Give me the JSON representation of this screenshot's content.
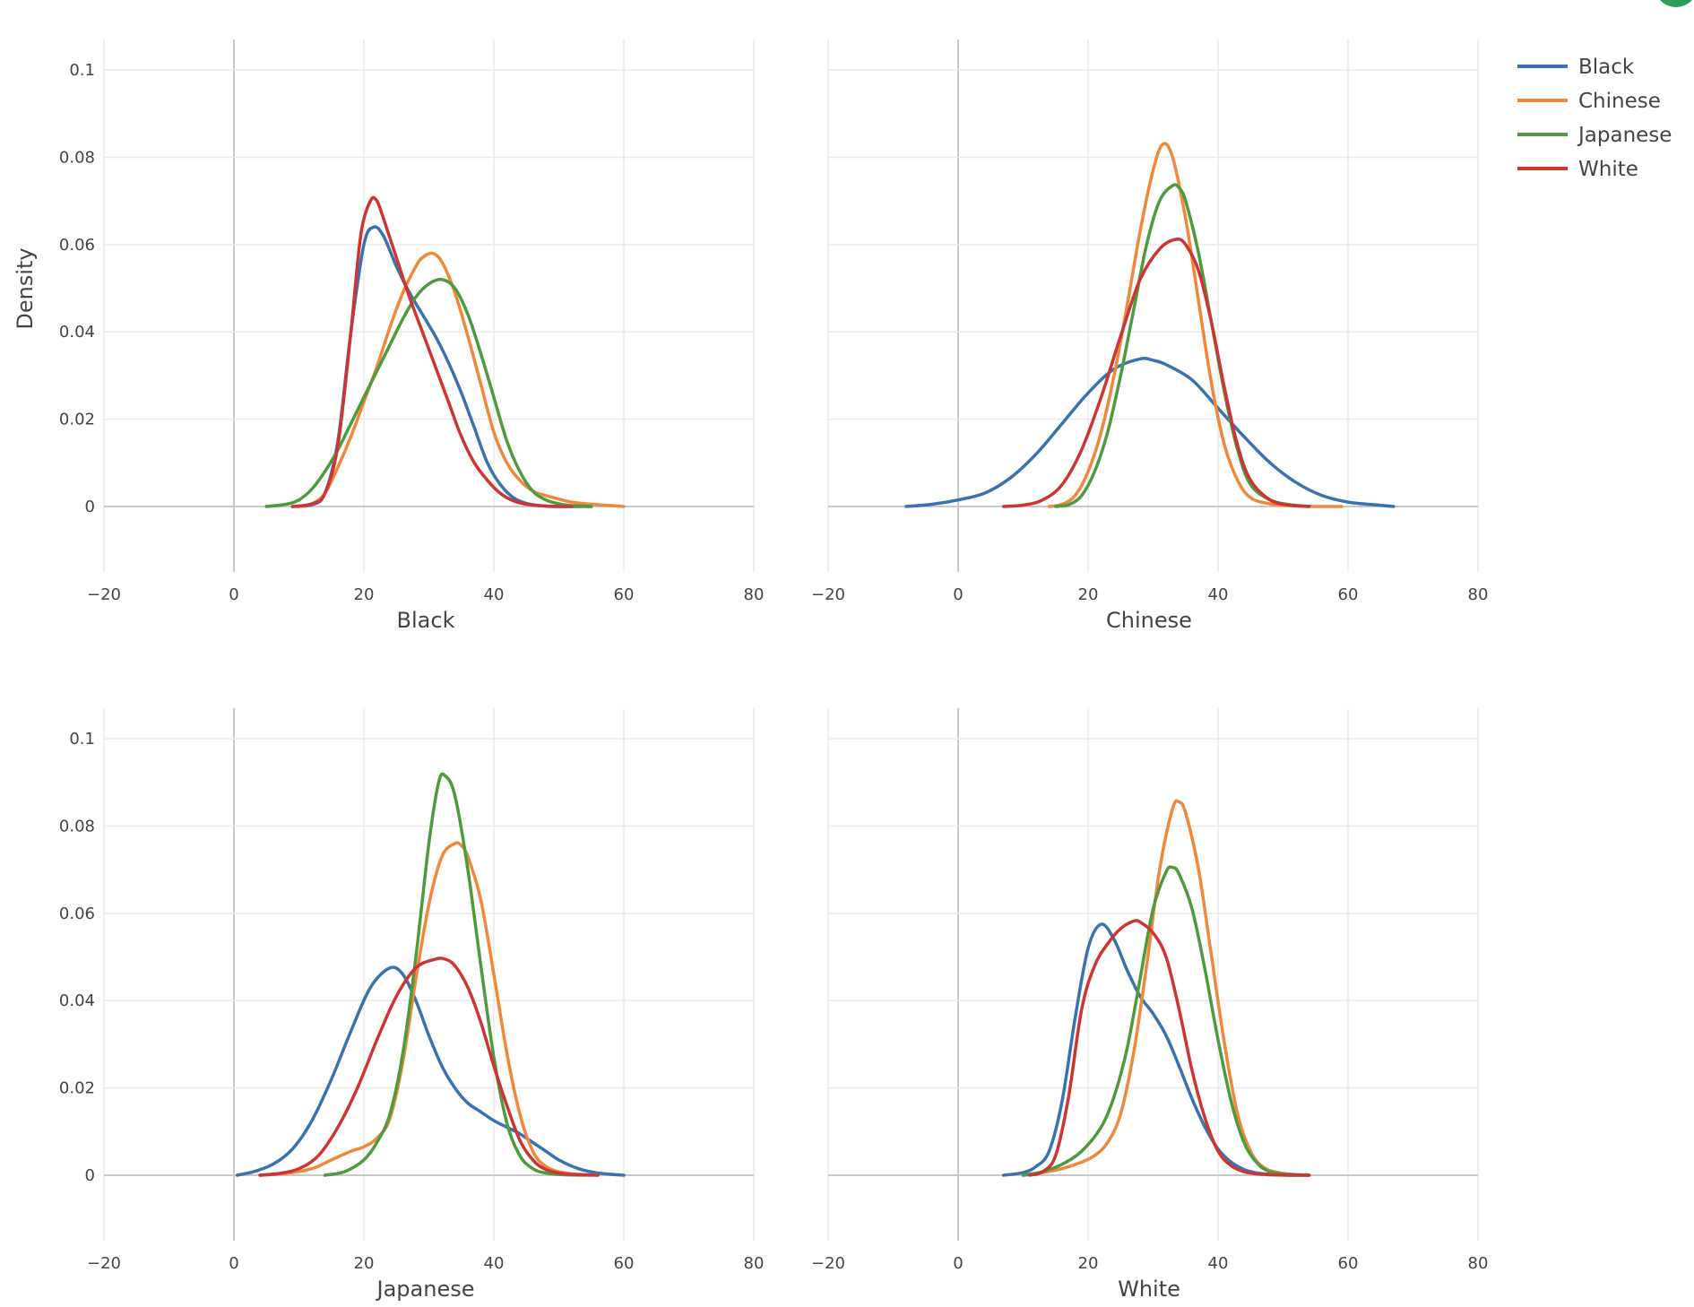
{
  "chart_data": [
    {
      "type": "line",
      "panel": "top-left",
      "xlabel": "Black",
      "ylabel": "Density",
      "xlim": [
        -20,
        80
      ],
      "ylim": [
        -0.015,
        0.107
      ],
      "xticks": [
        "−20",
        "0",
        "20",
        "40",
        "60",
        "80"
      ],
      "yticks": [
        "0",
        "0.02",
        "0.04",
        "0.06",
        "0.08",
        "0.1"
      ],
      "series": [
        {
          "name": "Black",
          "x": [
            9,
            12,
            14,
            16,
            18,
            20,
            21.5,
            23,
            25,
            27,
            29,
            31,
            33,
            35,
            37,
            39,
            41,
            43,
            45,
            47,
            50,
            54,
            55
          ],
          "y": [
            0,
            0.0004,
            0.003,
            0.015,
            0.04,
            0.06,
            0.064,
            0.062,
            0.055,
            0.049,
            0.044,
            0.039,
            0.033,
            0.026,
            0.018,
            0.01,
            0.005,
            0.002,
            0.0007,
            0.0002,
            0,
            0,
            0
          ]
        },
        {
          "name": "Chinese",
          "x": [
            10,
            12,
            14,
            16,
            18,
            20,
            22,
            24,
            26,
            28,
            29,
            30.5,
            32,
            34,
            36,
            38,
            40,
            42,
            44,
            46,
            48,
            50,
            52,
            55,
            58,
            60
          ],
          "y": [
            0,
            0.0006,
            0.003,
            0.009,
            0.016,
            0.024,
            0.032,
            0.041,
            0.049,
            0.055,
            0.057,
            0.058,
            0.056,
            0.049,
            0.039,
            0.028,
            0.017,
            0.01,
            0.006,
            0.0035,
            0.0025,
            0.0017,
            0.001,
            0.0005,
            0.0002,
            0
          ]
        },
        {
          "name": "Japanese",
          "x": [
            5,
            8,
            10,
            12,
            14,
            16,
            18,
            20,
            22,
            24,
            26,
            28,
            30,
            32,
            34,
            36,
            38,
            40,
            42,
            44,
            46,
            48,
            50,
            52,
            55
          ],
          "y": [
            0,
            0.0005,
            0.0015,
            0.004,
            0.008,
            0.013,
            0.019,
            0.025,
            0.031,
            0.037,
            0.043,
            0.048,
            0.051,
            0.052,
            0.05,
            0.044,
            0.035,
            0.025,
            0.015,
            0.008,
            0.0035,
            0.0015,
            0.0006,
            0.0002,
            0
          ]
        },
        {
          "name": "White",
          "x": [
            9,
            12,
            14,
            16,
            18,
            19.5,
            21,
            22,
            23,
            25,
            27,
            29,
            31,
            33,
            35,
            37,
            39,
            41,
            43,
            45,
            47,
            49,
            52
          ],
          "y": [
            0,
            0.0006,
            0.003,
            0.014,
            0.04,
            0.062,
            0.07,
            0.07,
            0.066,
            0.057,
            0.048,
            0.04,
            0.032,
            0.024,
            0.016,
            0.01,
            0.006,
            0.003,
            0.0013,
            0.0005,
            0.0002,
            0,
            0
          ]
        }
      ]
    },
    {
      "type": "line",
      "panel": "top-right",
      "xlabel": "Chinese",
      "ylabel": "",
      "xlim": [
        -20,
        80
      ],
      "ylim": [
        -0.015,
        0.107
      ],
      "xticks": [
        "−20",
        "0",
        "20",
        "40",
        "60",
        "80"
      ],
      "yticks": [],
      "series": [
        {
          "name": "Black",
          "x": [
            -8,
            -4,
            0,
            4,
            8,
            12,
            16,
            20,
            24,
            28,
            30,
            32,
            36,
            40,
            44,
            48,
            52,
            56,
            60,
            64,
            67
          ],
          "y": [
            0,
            0.0005,
            0.0015,
            0.003,
            0.0065,
            0.012,
            0.019,
            0.026,
            0.0315,
            0.0338,
            0.0335,
            0.0325,
            0.029,
            0.0225,
            0.016,
            0.01,
            0.0055,
            0.0025,
            0.001,
            0.0004,
            0
          ]
        },
        {
          "name": "Chinese",
          "x": [
            14,
            16,
            18,
            20,
            22,
            24,
            26,
            28,
            30,
            31.5,
            33,
            35,
            37,
            39,
            41,
            43,
            45,
            48,
            51,
            55,
            59
          ],
          "y": [
            0,
            0.0005,
            0.0025,
            0.008,
            0.017,
            0.03,
            0.046,
            0.063,
            0.077,
            0.083,
            0.08,
            0.066,
            0.047,
            0.028,
            0.014,
            0.006,
            0.002,
            0.0006,
            0.0002,
            0,
            0
          ]
        },
        {
          "name": "Japanese",
          "x": [
            15,
            17,
            19,
            21,
            23,
            25,
            27,
            29,
            31,
            33,
            34,
            35,
            37,
            39,
            41,
            43,
            45,
            48,
            51,
            54
          ],
          "y": [
            0,
            0.0004,
            0.0025,
            0.008,
            0.017,
            0.03,
            0.045,
            0.06,
            0.07,
            0.0735,
            0.073,
            0.07,
            0.058,
            0.042,
            0.026,
            0.013,
            0.005,
            0.0015,
            0.0004,
            0
          ]
        },
        {
          "name": "White",
          "x": [
            7,
            10,
            13,
            16,
            19,
            22,
            25,
            28,
            31,
            33.5,
            35,
            37,
            39,
            41,
            43,
            45,
            48,
            51,
            54
          ],
          "y": [
            0,
            0.0003,
            0.0015,
            0.005,
            0.013,
            0.025,
            0.039,
            0.052,
            0.059,
            0.0612,
            0.06,
            0.054,
            0.042,
            0.027,
            0.014,
            0.006,
            0.0015,
            0.0003,
            0
          ]
        }
      ]
    },
    {
      "type": "line",
      "panel": "bottom-left",
      "xlabel": "Japanese",
      "ylabel": "",
      "xlim": [
        -20,
        80
      ],
      "ylim": [
        -0.015,
        0.107
      ],
      "xticks": [
        "−20",
        "0",
        "20",
        "40",
        "60",
        "80"
      ],
      "yticks": [
        "0",
        "0.02",
        "0.04",
        "0.06",
        "0.08",
        "0.1"
      ],
      "series": [
        {
          "name": "Black",
          "x": [
            0.5,
            3,
            6,
            9,
            12,
            15,
            18,
            21,
            24,
            26,
            28,
            30,
            32,
            34,
            36,
            38,
            40,
            42,
            44,
            46,
            48,
            50,
            53,
            56,
            60
          ],
          "y": [
            0,
            0.0008,
            0.0025,
            0.006,
            0.0125,
            0.022,
            0.033,
            0.043,
            0.0475,
            0.046,
            0.04,
            0.032,
            0.025,
            0.02,
            0.0165,
            0.0145,
            0.0125,
            0.011,
            0.0095,
            0.0075,
            0.0055,
            0.0035,
            0.0015,
            0.0005,
            0
          ]
        },
        {
          "name": "Chinese",
          "x": [
            4,
            8,
            12,
            15,
            18,
            20,
            22,
            24,
            26,
            28,
            30,
            32,
            34,
            35,
            36,
            38,
            40,
            42,
            44,
            46,
            48,
            51,
            56
          ],
          "y": [
            0,
            0.0004,
            0.0015,
            0.0035,
            0.0055,
            0.0065,
            0.0085,
            0.013,
            0.026,
            0.045,
            0.062,
            0.073,
            0.076,
            0.0755,
            0.073,
            0.063,
            0.046,
            0.028,
            0.014,
            0.0055,
            0.002,
            0.0005,
            0
          ]
        },
        {
          "name": "Japanese",
          "x": [
            14,
            17,
            20,
            22,
            24,
            26,
            28,
            30,
            31.5,
            32.5,
            34,
            36,
            38,
            40,
            42,
            44,
            46,
            48,
            51,
            55
          ],
          "y": [
            0,
            0.0008,
            0.0035,
            0.0075,
            0.014,
            0.028,
            0.05,
            0.076,
            0.09,
            0.0915,
            0.087,
            0.07,
            0.048,
            0.027,
            0.012,
            0.0045,
            0.0015,
            0.0005,
            0.0001,
            0
          ]
        },
        {
          "name": "White",
          "x": [
            4,
            7,
            10,
            13,
            16,
            19,
            22,
            25,
            28,
            31,
            32.5,
            34,
            36,
            38,
            40,
            42,
            44,
            46,
            48,
            51,
            56
          ],
          "y": [
            0,
            0.0004,
            0.0015,
            0.0045,
            0.011,
            0.02,
            0.031,
            0.041,
            0.0475,
            0.0495,
            0.0495,
            0.048,
            0.043,
            0.035,
            0.025,
            0.016,
            0.008,
            0.0035,
            0.0013,
            0.0003,
            0
          ]
        }
      ]
    },
    {
      "type": "line",
      "panel": "bottom-right",
      "xlabel": "White",
      "ylabel": "",
      "xlim": [
        -20,
        80
      ],
      "ylim": [
        -0.015,
        0.107
      ],
      "xticks": [
        "−20",
        "0",
        "20",
        "40",
        "60",
        "80"
      ],
      "yticks": [],
      "series": [
        {
          "name": "Black",
          "x": [
            7,
            10,
            12,
            14,
            16,
            18,
            20,
            22,
            24,
            26,
            28,
            30,
            32,
            34,
            36,
            38,
            40,
            42,
            44,
            46,
            48,
            51,
            54
          ],
          "y": [
            0,
            0.0006,
            0.002,
            0.0055,
            0.017,
            0.036,
            0.052,
            0.0575,
            0.054,
            0.047,
            0.041,
            0.037,
            0.032,
            0.025,
            0.0175,
            0.011,
            0.006,
            0.003,
            0.0013,
            0.0005,
            0.0002,
            0,
            0
          ]
        },
        {
          "name": "Chinese",
          "x": [
            10,
            13,
            16,
            19,
            21,
            23,
            25,
            27,
            29,
            31,
            33,
            34,
            35,
            37,
            39,
            41,
            43,
            45,
            47,
            50,
            54
          ],
          "y": [
            0,
            0.0006,
            0.0015,
            0.003,
            0.0045,
            0.0075,
            0.014,
            0.028,
            0.048,
            0.07,
            0.084,
            0.0855,
            0.083,
            0.07,
            0.05,
            0.03,
            0.014,
            0.0055,
            0.0018,
            0.0004,
            0
          ]
        },
        {
          "name": "Japanese",
          "x": [
            10,
            13,
            16,
            19,
            22,
            24,
            26,
            28,
            30,
            32,
            33,
            34,
            36,
            38,
            40,
            42,
            44,
            46,
            48,
            51,
            54
          ],
          "y": [
            0,
            0.0008,
            0.0025,
            0.0055,
            0.011,
            0.018,
            0.029,
            0.045,
            0.061,
            0.0695,
            0.0705,
            0.069,
            0.061,
            0.047,
            0.031,
            0.017,
            0.0075,
            0.0028,
            0.0008,
            0.0002,
            0
          ]
        },
        {
          "name": "White",
          "x": [
            11,
            13,
            15,
            17,
            19,
            21,
            23,
            25,
            27,
            28,
            30,
            32,
            34,
            36,
            38,
            40,
            42,
            44,
            46,
            48,
            51,
            54
          ],
          "y": [
            0,
            0.0008,
            0.0045,
            0.018,
            0.038,
            0.048,
            0.053,
            0.0565,
            0.0582,
            0.058,
            0.0555,
            0.05,
            0.038,
            0.024,
            0.013,
            0.0055,
            0.0022,
            0.0008,
            0.0003,
            0.0001,
            0,
            0
          ]
        }
      ]
    }
  ],
  "legend": {
    "position": "top-right",
    "items": [
      {
        "label": "Black",
        "color": "#3a72b0"
      },
      {
        "label": "Chinese",
        "color": "#f0883c"
      },
      {
        "label": "Japanese",
        "color": "#4e9a3e"
      },
      {
        "label": "White",
        "color": "#cc3533"
      }
    ]
  },
  "colors": {
    "Black": "#3a72b0",
    "Chinese": "#f0883c",
    "Japanese": "#4e9a3e",
    "White": "#cc3533"
  }
}
